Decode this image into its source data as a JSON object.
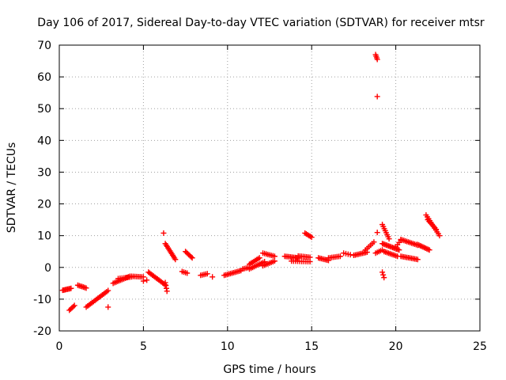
{
  "chart_data": {
    "type": "scatter",
    "title": "Day 106 of 2017, Sidereal Day-to-day VTEC variation (SDTVAR) for receiver mtsr",
    "xlabel": "GPS time / hours",
    "ylabel": "SDTVAR / TECUs",
    "xlim": [
      0,
      25
    ],
    "ylim": [
      -20,
      70
    ],
    "xticks": [
      0,
      5,
      10,
      15,
      20,
      25
    ],
    "yticks": [
      -20,
      -10,
      0,
      10,
      20,
      30,
      40,
      50,
      60,
      70
    ],
    "grid": true,
    "marker": "+",
    "color": "#ff0000",
    "series": [
      {
        "name": "SDTVAR",
        "segments": [
          {
            "x0": 0.2,
            "y0": -7.2,
            "x1": 0.7,
            "y1": -6.6,
            "n": 8
          },
          {
            "x0": 0.6,
            "y0": -13.5,
            "x1": 0.9,
            "y1": -12.0,
            "n": 5
          },
          {
            "x0": 1.1,
            "y0": -5.6,
            "x1": 1.6,
            "y1": -6.5,
            "n": 7
          },
          {
            "x0": 1.6,
            "y0": -12.5,
            "x1": 2.9,
            "y1": -7.3,
            "n": 16
          },
          {
            "x0": 2.9,
            "y0": -12.5,
            "x1": 2.9,
            "y1": -12.5,
            "n": 1
          },
          {
            "x0": 3.2,
            "y0": -5.0,
            "x1": 4.2,
            "y1": -2.8,
            "n": 12
          },
          {
            "x0": 3.5,
            "y0": -3.5,
            "x1": 4.3,
            "y1": -3.0,
            "n": 8
          },
          {
            "x0": 4.3,
            "y0": -2.8,
            "x1": 5.0,
            "y1": -3.0,
            "n": 8
          },
          {
            "x0": 5.0,
            "y0": -4.3,
            "x1": 5.2,
            "y1": -4.0,
            "n": 2
          },
          {
            "x0": 5.3,
            "y0": -1.5,
            "x1": 6.3,
            "y1": -5.5,
            "n": 14
          },
          {
            "x0": 6.3,
            "y0": -4.8,
            "x1": 6.4,
            "y1": -7.5,
            "n": 4
          },
          {
            "x0": 6.2,
            "y0": 10.8,
            "x1": 6.2,
            "y1": 10.8,
            "n": 1
          },
          {
            "x0": 6.3,
            "y0": 7.5,
            "x1": 6.9,
            "y1": 2.5,
            "n": 12
          },
          {
            "x0": 7.3,
            "y0": -1.3,
            "x1": 7.6,
            "y1": -1.8,
            "n": 4
          },
          {
            "x0": 7.5,
            "y0": 5.0,
            "x1": 7.9,
            "y1": 3.0,
            "n": 7
          },
          {
            "x0": 8.4,
            "y0": -2.5,
            "x1": 8.8,
            "y1": -2.0,
            "n": 5
          },
          {
            "x0": 9.1,
            "y0": -3.0,
            "x1": 9.1,
            "y1": -3.0,
            "n": 1
          },
          {
            "x0": 9.8,
            "y0": -2.5,
            "x1": 10.8,
            "y1": -1.0,
            "n": 12
          },
          {
            "x0": 10.9,
            "y0": -0.5,
            "x1": 11.3,
            "y1": 0.0,
            "n": 5
          },
          {
            "x0": 11.3,
            "y0": 1.0,
            "x1": 11.9,
            "y1": 3.0,
            "n": 8
          },
          {
            "x0": 11.3,
            "y0": -0.5,
            "x1": 12.2,
            "y1": 1.8,
            "n": 10
          },
          {
            "x0": 12.1,
            "y0": 4.5,
            "x1": 12.8,
            "y1": 3.5,
            "n": 8
          },
          {
            "x0": 12.1,
            "y0": 0.5,
            "x1": 12.8,
            "y1": 2.0,
            "n": 8
          },
          {
            "x0": 13.4,
            "y0": 3.5,
            "x1": 14.2,
            "y1": 3.0,
            "n": 10
          },
          {
            "x0": 13.8,
            "y0": 2.0,
            "x1": 14.9,
            "y1": 1.8,
            "n": 10
          },
          {
            "x0": 14.2,
            "y0": 3.6,
            "x1": 14.9,
            "y1": 3.2,
            "n": 8
          },
          {
            "x0": 14.6,
            "y0": 10.8,
            "x1": 15.0,
            "y1": 9.5,
            "n": 6
          },
          {
            "x0": 15.4,
            "y0": 3.0,
            "x1": 16.0,
            "y1": 2.2,
            "n": 8
          },
          {
            "x0": 16.0,
            "y0": 3.0,
            "x1": 16.7,
            "y1": 3.5,
            "n": 8
          },
          {
            "x0": 16.9,
            "y0": 4.5,
            "x1": 17.3,
            "y1": 4.0,
            "n": 4
          },
          {
            "x0": 17.5,
            "y0": 3.8,
            "x1": 18.3,
            "y1": 4.8,
            "n": 10
          },
          {
            "x0": 18.2,
            "y0": 5.5,
            "x1": 18.7,
            "y1": 8.0,
            "n": 6
          },
          {
            "x0": 18.8,
            "y0": 67.0,
            "x1": 18.9,
            "y1": 65.5,
            "n": 4
          },
          {
            "x0": 18.9,
            "y0": 53.8,
            "x1": 18.9,
            "y1": 53.8,
            "n": 1
          },
          {
            "x0": 18.9,
            "y0": 11.0,
            "x1": 18.9,
            "y1": 11.0,
            "n": 1
          },
          {
            "x0": 18.8,
            "y0": 4.5,
            "x1": 19.2,
            "y1": 5.5,
            "n": 5
          },
          {
            "x0": 19.2,
            "y0": 13.5,
            "x1": 19.6,
            "y1": 9.0,
            "n": 8
          },
          {
            "x0": 19.2,
            "y0": -1.5,
            "x1": 19.3,
            "y1": -3.2,
            "n": 3
          },
          {
            "x0": 19.2,
            "y0": 7.5,
            "x1": 20.2,
            "y1": 5.5,
            "n": 14
          },
          {
            "x0": 19.3,
            "y0": 5.0,
            "x1": 20.1,
            "y1": 3.5,
            "n": 10
          },
          {
            "x0": 20.0,
            "y0": 6.5,
            "x1": 20.3,
            "y1": 8.5,
            "n": 4
          },
          {
            "x0": 20.3,
            "y0": 8.8,
            "x1": 21.3,
            "y1": 7.0,
            "n": 12
          },
          {
            "x0": 20.3,
            "y0": 3.5,
            "x1": 21.3,
            "y1": 2.5,
            "n": 12
          },
          {
            "x0": 21.3,
            "y0": 7.2,
            "x1": 22.0,
            "y1": 5.5,
            "n": 10
          },
          {
            "x0": 21.8,
            "y0": 16.5,
            "x1": 22.6,
            "y1": 10.0,
            "n": 12
          },
          {
            "x0": 21.9,
            "y0": 15.0,
            "x1": 22.4,
            "y1": 12.0,
            "n": 7
          }
        ]
      }
    ]
  }
}
